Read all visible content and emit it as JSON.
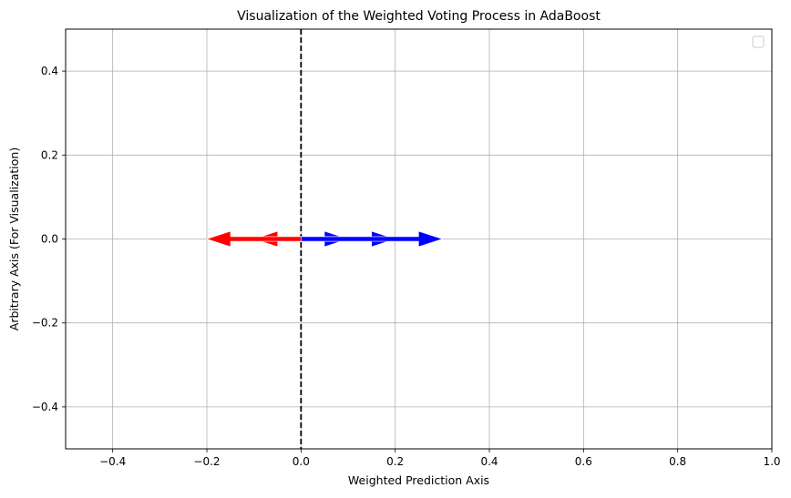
{
  "chart_data": {
    "type": "quiver",
    "title": "Visualization of the Weighted Voting Process in AdaBoost",
    "xlabel": "Weighted Prediction Axis",
    "ylabel": "Arbitrary Axis (For Visualization)",
    "xlim": [
      -0.5,
      1.0
    ],
    "ylim": [
      -0.5,
      0.5
    ],
    "xticks": [
      -0.4,
      -0.2,
      0.0,
      0.2,
      0.4,
      0.6,
      0.8,
      1.0
    ],
    "yticks": [
      -0.4,
      -0.2,
      0.0,
      0.2,
      0.4
    ],
    "xtick_labels": [
      "−0.4",
      "−0.2",
      "0.0",
      "0.2",
      "0.4",
      "0.6",
      "0.8",
      "1.0"
    ],
    "ytick_labels": [
      "−0.4",
      "−0.2",
      "0.0",
      "0.2",
      "0.4"
    ],
    "grid": true,
    "legend": "top-right (empty)",
    "vertical_line": {
      "x": 0.0,
      "style": "dashed",
      "color": "#000000"
    },
    "arrows": [
      {
        "x": 0,
        "y": 0,
        "dx": -0.1,
        "color": "#ff0000"
      },
      {
        "x": 0,
        "y": 0,
        "dx": -0.2,
        "color": "#ff0000"
      },
      {
        "x": 0,
        "y": 0,
        "dx": 0.1,
        "color": "#0000ff"
      },
      {
        "x": 0,
        "y": 0,
        "dx": 0.2,
        "color": "#0000ff"
      },
      {
        "x": 0,
        "y": 0,
        "dx": 0.3,
        "color": "#0000ff"
      }
    ]
  }
}
